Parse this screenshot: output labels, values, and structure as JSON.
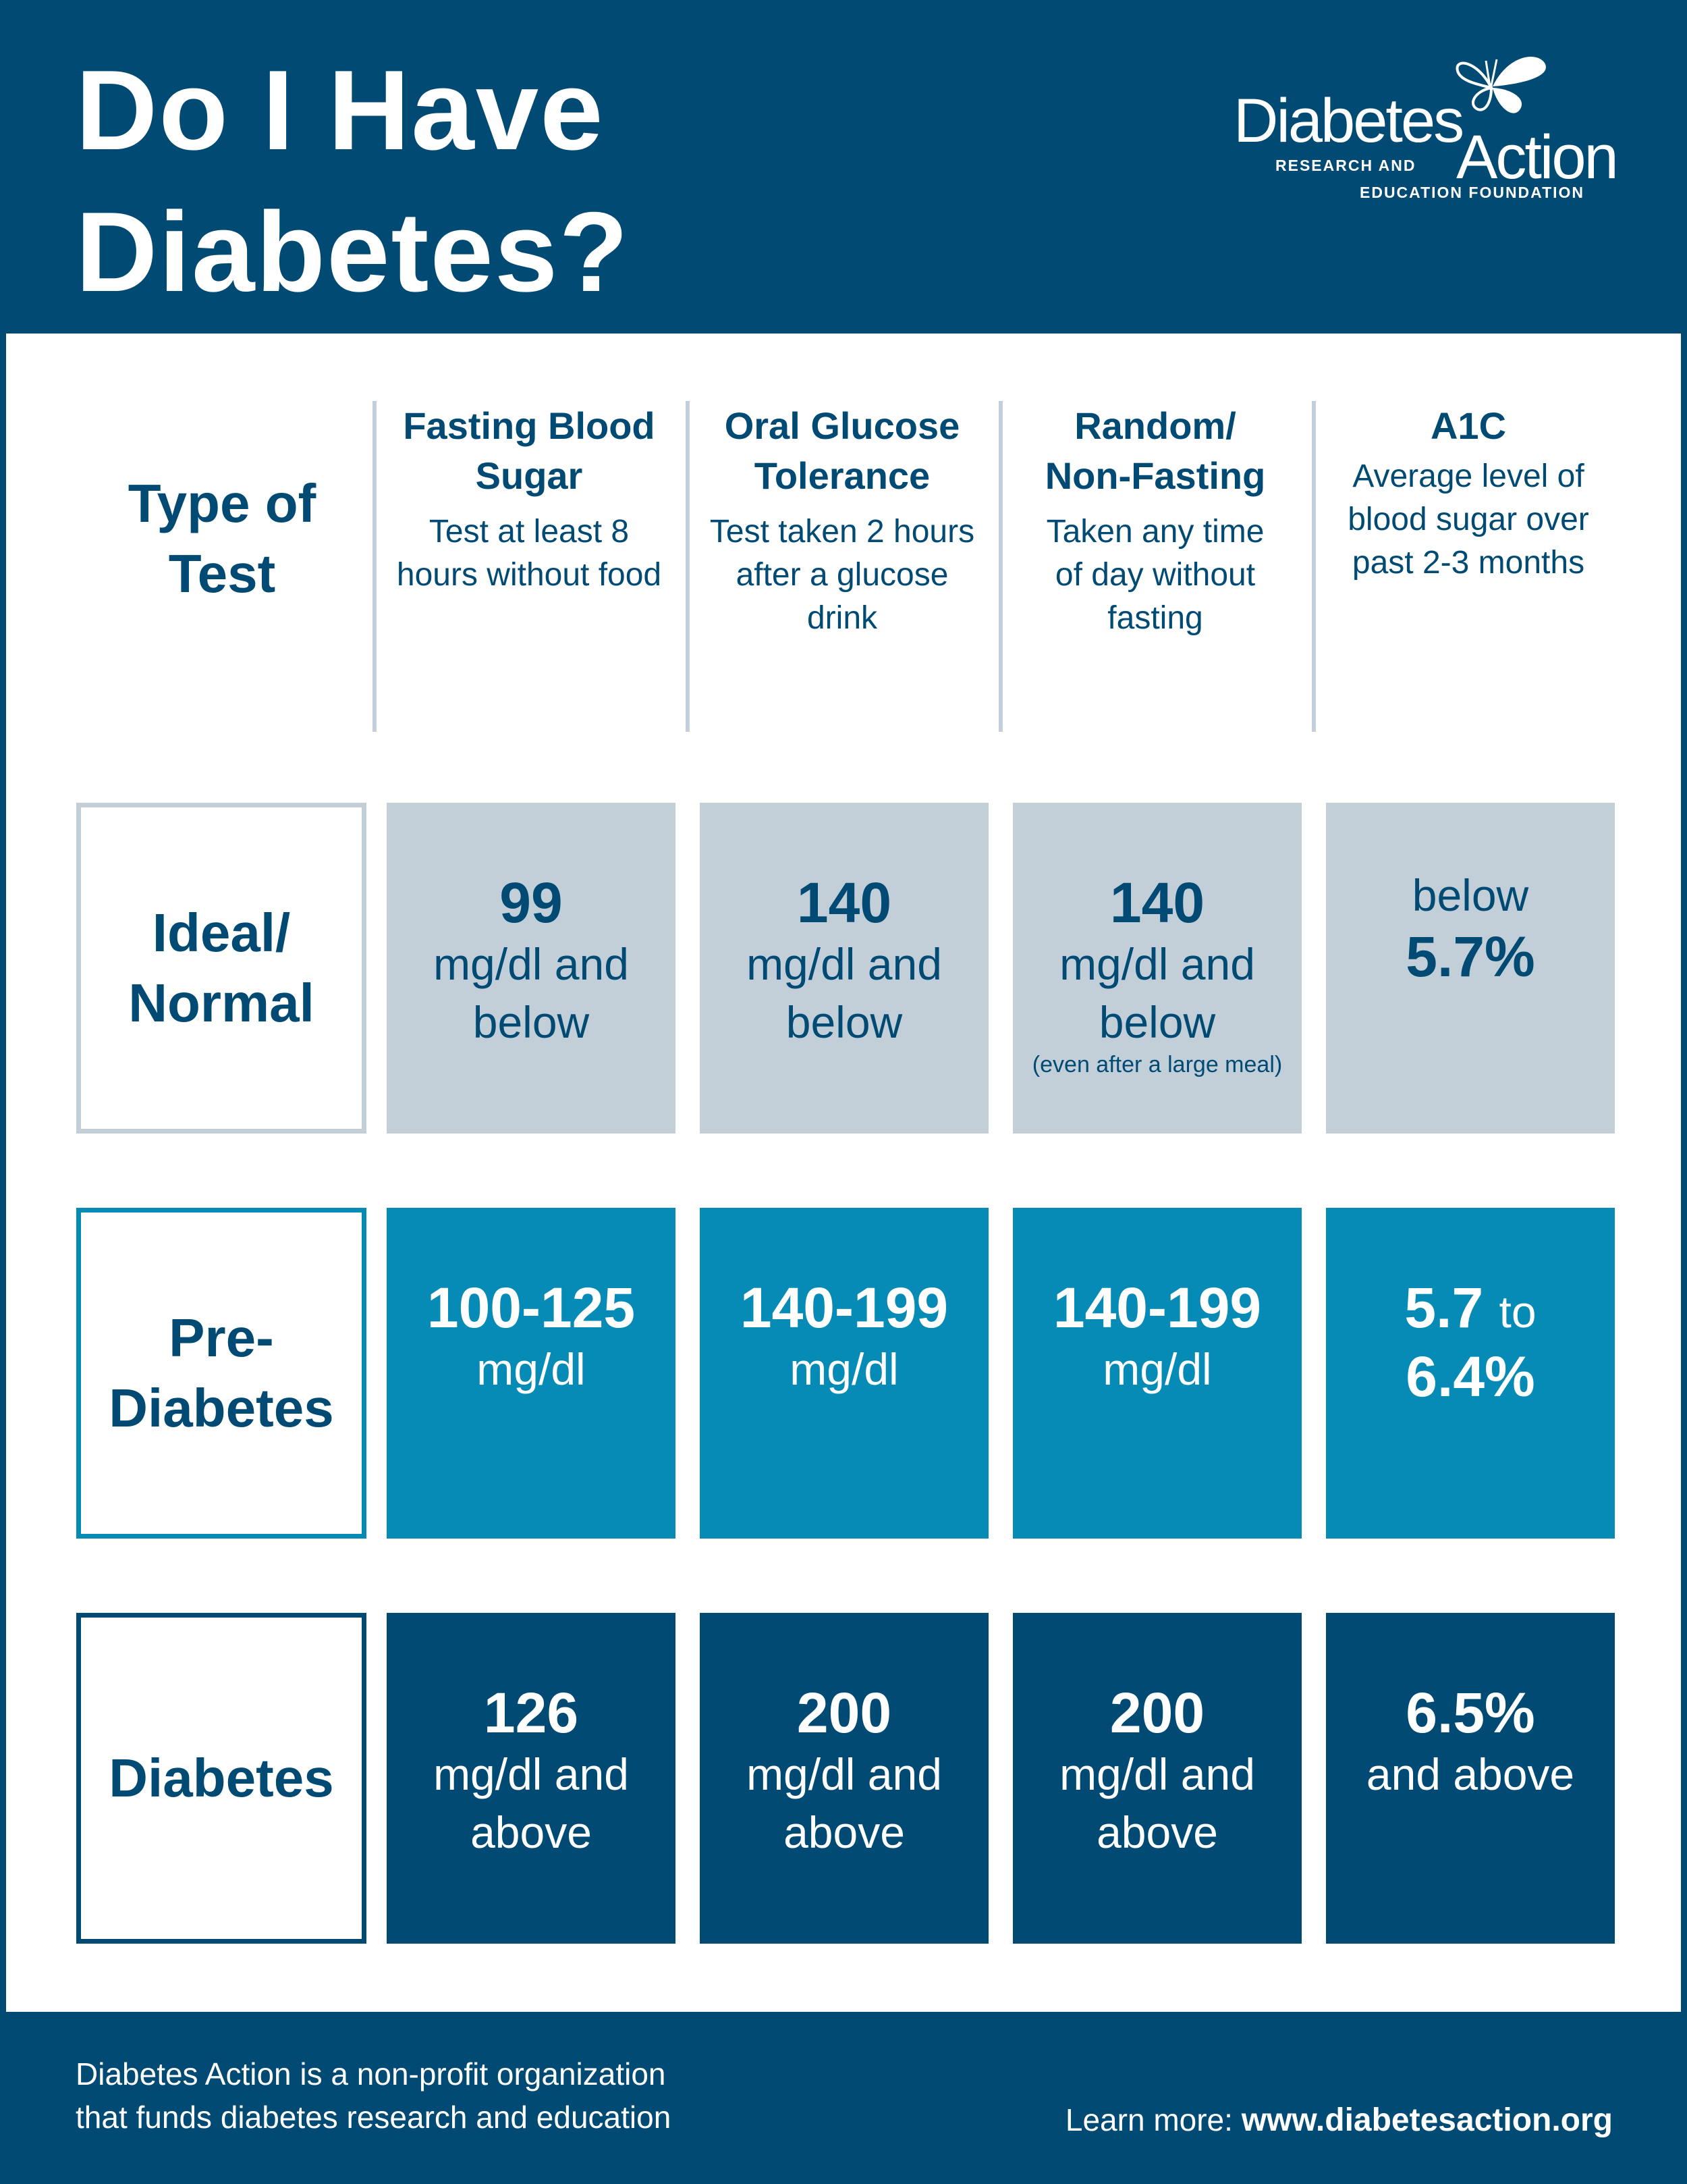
{
  "title": {
    "line1": "Do I Have",
    "line2": "Diabetes?"
  },
  "logo": {
    "word1": "Diabetes",
    "word2": "Action",
    "sub1": "RESEARCH AND",
    "sub2": "EDUCATION FOUNDATION",
    "icon": "butterfly-icon"
  },
  "header": {
    "type_of_test": {
      "line1": "Type of",
      "line2": "Test"
    },
    "columns": [
      {
        "h1": "Fasting Blood",
        "h2": "Sugar",
        "d1": "Test at least 8",
        "d2": "hours without food",
        "d3": ""
      },
      {
        "h1": "Oral Glucose",
        "h2": "Tolerance",
        "d1": "Test taken 2 hours",
        "d2": "after a glucose",
        "d3": "drink"
      },
      {
        "h1": "Random/",
        "h2": "Non-Fasting",
        "d1": "Taken any time",
        "d2": "of day without",
        "d3": "fasting"
      },
      {
        "h1": "A1C",
        "h2": "",
        "d1": "Average level of",
        "d2": "blood sugar over",
        "d3": "past 2-3 months"
      }
    ]
  },
  "rows": {
    "ideal": {
      "label1": "Ideal/",
      "label2": "Normal",
      "cells": [
        {
          "value": "99",
          "l1": "mg/dl and",
          "l2": "below"
        },
        {
          "value": "140",
          "l1": "mg/dl and",
          "l2": "below"
        },
        {
          "value": "140",
          "l1": "mg/dl and",
          "l2": "below",
          "note": "(even after a large meal)"
        },
        {
          "pre": "below",
          "value": "5.7%"
        }
      ]
    },
    "pre": {
      "label1": "Pre-",
      "label2": "Diabetes",
      "cells": [
        {
          "value": "100-125",
          "l1": "mg/dl"
        },
        {
          "value": "140-199",
          "l1": "mg/dl"
        },
        {
          "value": "140-199",
          "l1": "mg/dl"
        },
        {
          "v1": "5.7",
          "mid": "to",
          "v2": "6.4%"
        }
      ]
    },
    "diabetes": {
      "label1": "Diabetes",
      "cells": [
        {
          "value": "126",
          "l1": "mg/dl and",
          "l2": "above"
        },
        {
          "value": "200",
          "l1": "mg/dl and",
          "l2": "above"
        },
        {
          "value": "200",
          "l1": "mg/dl and",
          "l2": "above"
        },
        {
          "value": "6.5%",
          "l1": "and above"
        }
      ]
    }
  },
  "footer": {
    "line1": "Diabetes Action is a non-profit organization",
    "line2": "that funds diabetes research and education",
    "learn_label": "Learn more:",
    "url": "www.diabetesaction.org"
  },
  "colors": {
    "navy": "#004a74",
    "teal": "#068bb6",
    "light_gray_blue": "#c2cfd8",
    "white": "#ffffff"
  }
}
